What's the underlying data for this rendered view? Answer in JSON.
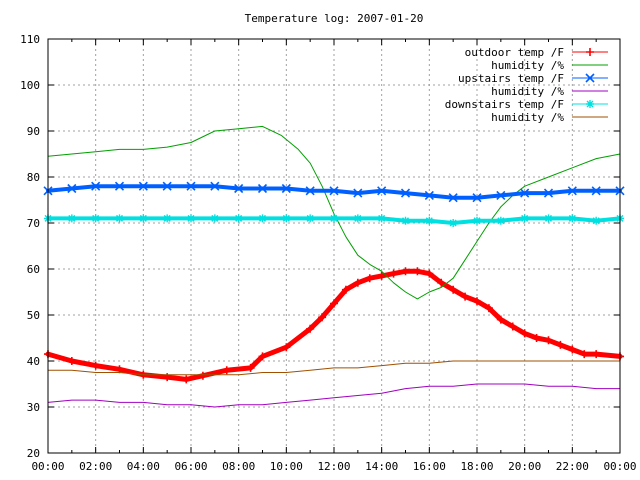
{
  "chart_data": {
    "type": "line",
    "title": "Temperature log: 2007-01-20",
    "xlabel": "",
    "ylabel": "",
    "xlim": [
      0,
      24
    ],
    "ylim": [
      20,
      110
    ],
    "x_ticks": [
      "00:00",
      "02:00",
      "04:00",
      "06:00",
      "08:00",
      "10:00",
      "12:00",
      "14:00",
      "16:00",
      "18:00",
      "20:00",
      "22:00",
      "00:00"
    ],
    "y_ticks": [
      "20",
      "30",
      "40",
      "50",
      "60",
      "70",
      "80",
      "90",
      "100",
      "110"
    ],
    "grid": true,
    "legend_position": "top-right",
    "series": [
      {
        "name": "outdoor temp /F",
        "color": "#ff0000",
        "marker": "plus",
        "x": [
          0,
          1,
          2,
          3,
          4,
          5,
          5.8,
          6.5,
          7.5,
          8.5,
          9,
          10,
          11,
          11.5,
          12,
          12.5,
          13,
          13.5,
          14,
          14.5,
          15,
          15.5,
          16,
          16.5,
          17,
          17.5,
          18,
          18.5,
          19,
          19.5,
          20,
          20.5,
          21,
          21.5,
          22,
          22.5,
          23,
          24
        ],
        "y": [
          41.5,
          40,
          39,
          38.2,
          37,
          36.5,
          36,
          36.8,
          38,
          38.5,
          41,
          43,
          47,
          49.5,
          52.5,
          55.5,
          57,
          58,
          58.5,
          59,
          59.5,
          59.5,
          59,
          57,
          55.5,
          54,
          53,
          51.5,
          49,
          47.5,
          46,
          45,
          44.5,
          43.5,
          42.5,
          41.5,
          41.5,
          41
        ]
      },
      {
        "name": "humidity /%",
        "color": "#00a000",
        "marker": "none",
        "x": [
          0,
          1,
          2,
          3,
          4,
          5,
          6,
          7,
          8,
          9,
          9.8,
          10.5,
          11,
          11.5,
          12,
          12.5,
          13,
          13.5,
          14,
          14.5,
          15,
          15.5,
          16,
          16.5,
          17,
          17.5,
          18,
          18.5,
          19,
          19.5,
          20,
          21,
          22,
          23,
          24
        ],
        "y": [
          84.5,
          85,
          85.5,
          86,
          86,
          86.5,
          87.5,
          90,
          90.5,
          91,
          89,
          86,
          83,
          78,
          72,
          67,
          63,
          61,
          59.5,
          57,
          55,
          53.5,
          55,
          56,
          58,
          62,
          66,
          70,
          73.5,
          76,
          78,
          80,
          82,
          84,
          85
        ]
      },
      {
        "name": "upstairs temp /F",
        "color": "#0060ff",
        "marker": "x",
        "x": [
          0,
          1,
          2,
          3,
          4,
          5,
          6,
          7,
          8,
          9,
          10,
          11,
          12,
          13,
          14,
          15,
          16,
          17,
          18,
          19,
          20,
          21,
          22,
          23,
          24
        ],
        "y": [
          77,
          77.5,
          78,
          78,
          78,
          78,
          78,
          78,
          77.5,
          77.5,
          77.5,
          77,
          77,
          76.5,
          77,
          76.5,
          76,
          75.5,
          75.5,
          76,
          76.5,
          76.5,
          77,
          77,
          77
        ]
      },
      {
        "name": "humidity /%",
        "color": "#a000c0",
        "marker": "none",
        "x": [
          0,
          1,
          2,
          3,
          4,
          5,
          6,
          7,
          8,
          9,
          10,
          11,
          12,
          13,
          14,
          15,
          16,
          17,
          18,
          19,
          20,
          21,
          22,
          23,
          24
        ],
        "y": [
          31,
          31.5,
          31.5,
          31,
          31,
          30.5,
          30.5,
          30,
          30.5,
          30.5,
          31,
          31.5,
          32,
          32.5,
          33,
          34,
          34.5,
          34.5,
          35,
          35,
          35,
          34.5,
          34.5,
          34,
          34
        ]
      },
      {
        "name": "downstairs temp /F",
        "color": "#00e0e0",
        "marker": "star",
        "x": [
          0,
          1,
          2,
          3,
          4,
          5,
          6,
          7,
          8,
          9,
          10,
          11,
          12,
          13,
          14,
          15,
          16,
          17,
          18,
          19,
          20,
          21,
          22,
          23,
          24
        ],
        "y": [
          71,
          71,
          71,
          71,
          71,
          71,
          71,
          71,
          71,
          71,
          71,
          71,
          71,
          71,
          71,
          70.5,
          70.5,
          70,
          70.5,
          70.5,
          71,
          71,
          71,
          70.5,
          71
        ]
      },
      {
        "name": "humidity /%",
        "color": "#a05000",
        "marker": "none",
        "x": [
          0,
          1,
          2,
          3,
          4,
          5,
          6,
          7,
          8,
          9,
          10,
          11,
          12,
          13,
          14,
          15,
          16,
          17,
          18,
          19,
          20,
          21,
          22,
          23,
          24
        ],
        "y": [
          38,
          38,
          37.5,
          37.5,
          37,
          37,
          37,
          37,
          37,
          37.5,
          37.5,
          38,
          38.5,
          38.5,
          39,
          39.5,
          39.5,
          40,
          40,
          40,
          40,
          40,
          40,
          40,
          40
        ]
      }
    ]
  }
}
